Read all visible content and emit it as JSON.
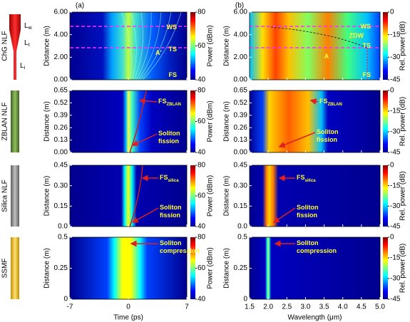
{
  "panel_labels": [
    "(a)",
    "(b)"
  ],
  "taper_labels": [
    {
      "text": "L",
      "sub": "w"
    },
    {
      "text": "L",
      "sub": "t"
    },
    {
      "text": "L",
      "sub": "i"
    }
  ],
  "time_axis": {
    "label": "Time (ps)",
    "xlim": [
      -7,
      7
    ],
    "xticks": [
      -7,
      0,
      7
    ]
  },
  "wavelength_axis": {
    "label": "Wavelength (μm)",
    "xlim": [
      1.5,
      5.0
    ],
    "xticks": [
      1.5,
      {
        "value": 2,
        "label": "2.0"
      },
      2.5,
      {
        "value": 3,
        "label": "3.0"
      },
      3.5,
      {
        "value": 4,
        "label": "4.0"
      },
      4.5,
      {
        "value": 5,
        "label": "5.0"
      }
    ]
  },
  "power_colorbar": {
    "label": "Power (dBm)",
    "lim": [
      40,
      80
    ],
    "ticks": [
      40,
      60,
      80
    ]
  },
  "rel_colorbar": {
    "label": "Rel. power (dB)",
    "lim": [
      -45,
      0
    ],
    "ticks": [
      -45,
      -30,
      -15,
      0
    ]
  },
  "rows": [
    {
      "fiber": "ChG NLF",
      "ylabel": "Distance (m)",
      "ylim": [
        0,
        6
      ],
      "yticks": [
        {
          "value": 0,
          "label": "0.00"
        },
        {
          "value": 2,
          "label": "2.00"
        },
        {
          "value": 4,
          "label": "4.00"
        },
        {
          "value": 6,
          "label": "6.00"
        }
      ],
      "left_annotations": [
        {
          "text": "WS"
        },
        {
          "text": "TS"
        },
        {
          "text": "FS"
        },
        {
          "text": "A′"
        }
      ],
      "right_annotations": [
        {
          "text": "WS"
        },
        {
          "text": "ZDW"
        },
        {
          "text": "TS"
        },
        {
          "text": "A"
        },
        {
          "text": "FS"
        }
      ]
    },
    {
      "fiber": "ZBLAN NLF",
      "ylabel": "Distance (m)",
      "ylim": [
        0,
        0.65
      ],
      "yticks": [
        {
          "value": 0,
          "label": "0.00"
        },
        0.13,
        0.26,
        0.39,
        0.52,
        0.65
      ],
      "left_annotations": [
        {
          "text": "FS",
          "sub": "ZBLAN"
        },
        {
          "lines": [
            "Soliton",
            "fission"
          ]
        }
      ],
      "right_annotations": [
        {
          "text": "FS",
          "sub": "ZBLAN"
        },
        {
          "lines": [
            "Soliton",
            "fission"
          ]
        }
      ]
    },
    {
      "fiber": "Silica NLF",
      "ylabel": "Distance (m)",
      "ylim": [
        0,
        0.45
      ],
      "yticks": [
        {
          "value": 0,
          "label": "0.0"
        },
        0.15,
        {
          "value": 0.3,
          "label": "0.30"
        },
        0.45
      ],
      "left_annotations": [
        {
          "text": "FS",
          "sub": "silica"
        },
        {
          "lines": [
            "Soliton",
            "fission"
          ]
        }
      ],
      "right_annotations": [
        {
          "text": "FS",
          "sub": "silica"
        },
        {
          "lines": [
            "Soliton",
            "fission"
          ]
        }
      ]
    },
    {
      "fiber": "SSMF",
      "ylabel": "Distance (m)",
      "ylim": [
        0,
        0.5
      ],
      "yticks": [
        0,
        0.25,
        0.5
      ],
      "left_annotations": [
        {
          "lines": [
            "Soliton",
            "compression"
          ]
        }
      ],
      "right_annotations": [
        {
          "lines": [
            "Soliton",
            "compression"
          ]
        }
      ]
    }
  ]
}
